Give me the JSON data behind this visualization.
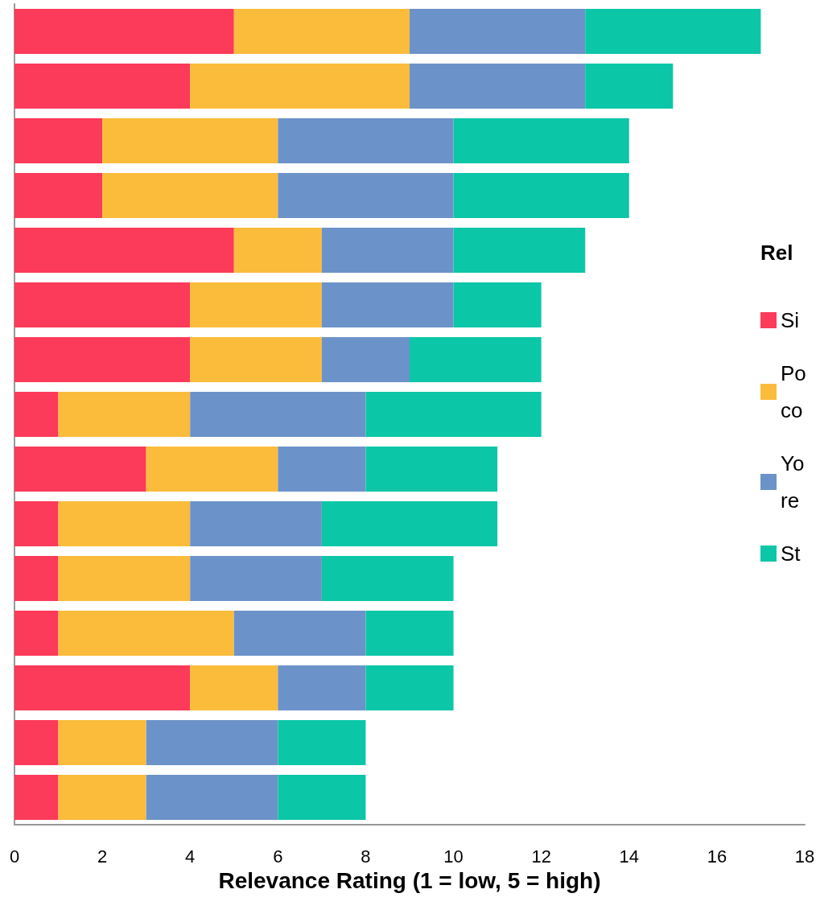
{
  "chart_data": {
    "type": "bar",
    "orientation": "horizontal",
    "stacked": true,
    "xlabel": "Relevance Rating (1 = low, 5 = high)",
    "legend_title": "Rel",
    "legend": "right",
    "categories": [
      null,
      null,
      null,
      null,
      null,
      null,
      null,
      null,
      null,
      null,
      null,
      null,
      null,
      null,
      null
    ],
    "xlim": [
      0,
      18
    ],
    "xticks": [
      0,
      2,
      4,
      6,
      8,
      10,
      12,
      14,
      16,
      18
    ],
    "grid": false,
    "series": [
      {
        "name": "Si",
        "color": "#fc3a5a",
        "values": [
          5,
          4,
          2,
          2,
          5,
          4,
          4,
          1,
          3,
          1,
          1,
          1,
          4,
          1,
          1
        ]
      },
      {
        "name": "Po\nco",
        "color": "#fbbc3c",
        "values": [
          4,
          5,
          4,
          4,
          2,
          3,
          3,
          3,
          3,
          3,
          3,
          4,
          2,
          2,
          2
        ]
      },
      {
        "name": "Yo\nre",
        "color": "#6c93c9",
        "values": [
          4,
          4,
          4,
          4,
          3,
          3,
          2,
          4,
          2,
          3,
          3,
          3,
          2,
          3,
          3
        ]
      },
      {
        "name": "St",
        "color": "#0cc6a8",
        "values": [
          4,
          2,
          4,
          4,
          3,
          2,
          3,
          4,
          3,
          4,
          3,
          2,
          2,
          2,
          2
        ]
      }
    ]
  }
}
